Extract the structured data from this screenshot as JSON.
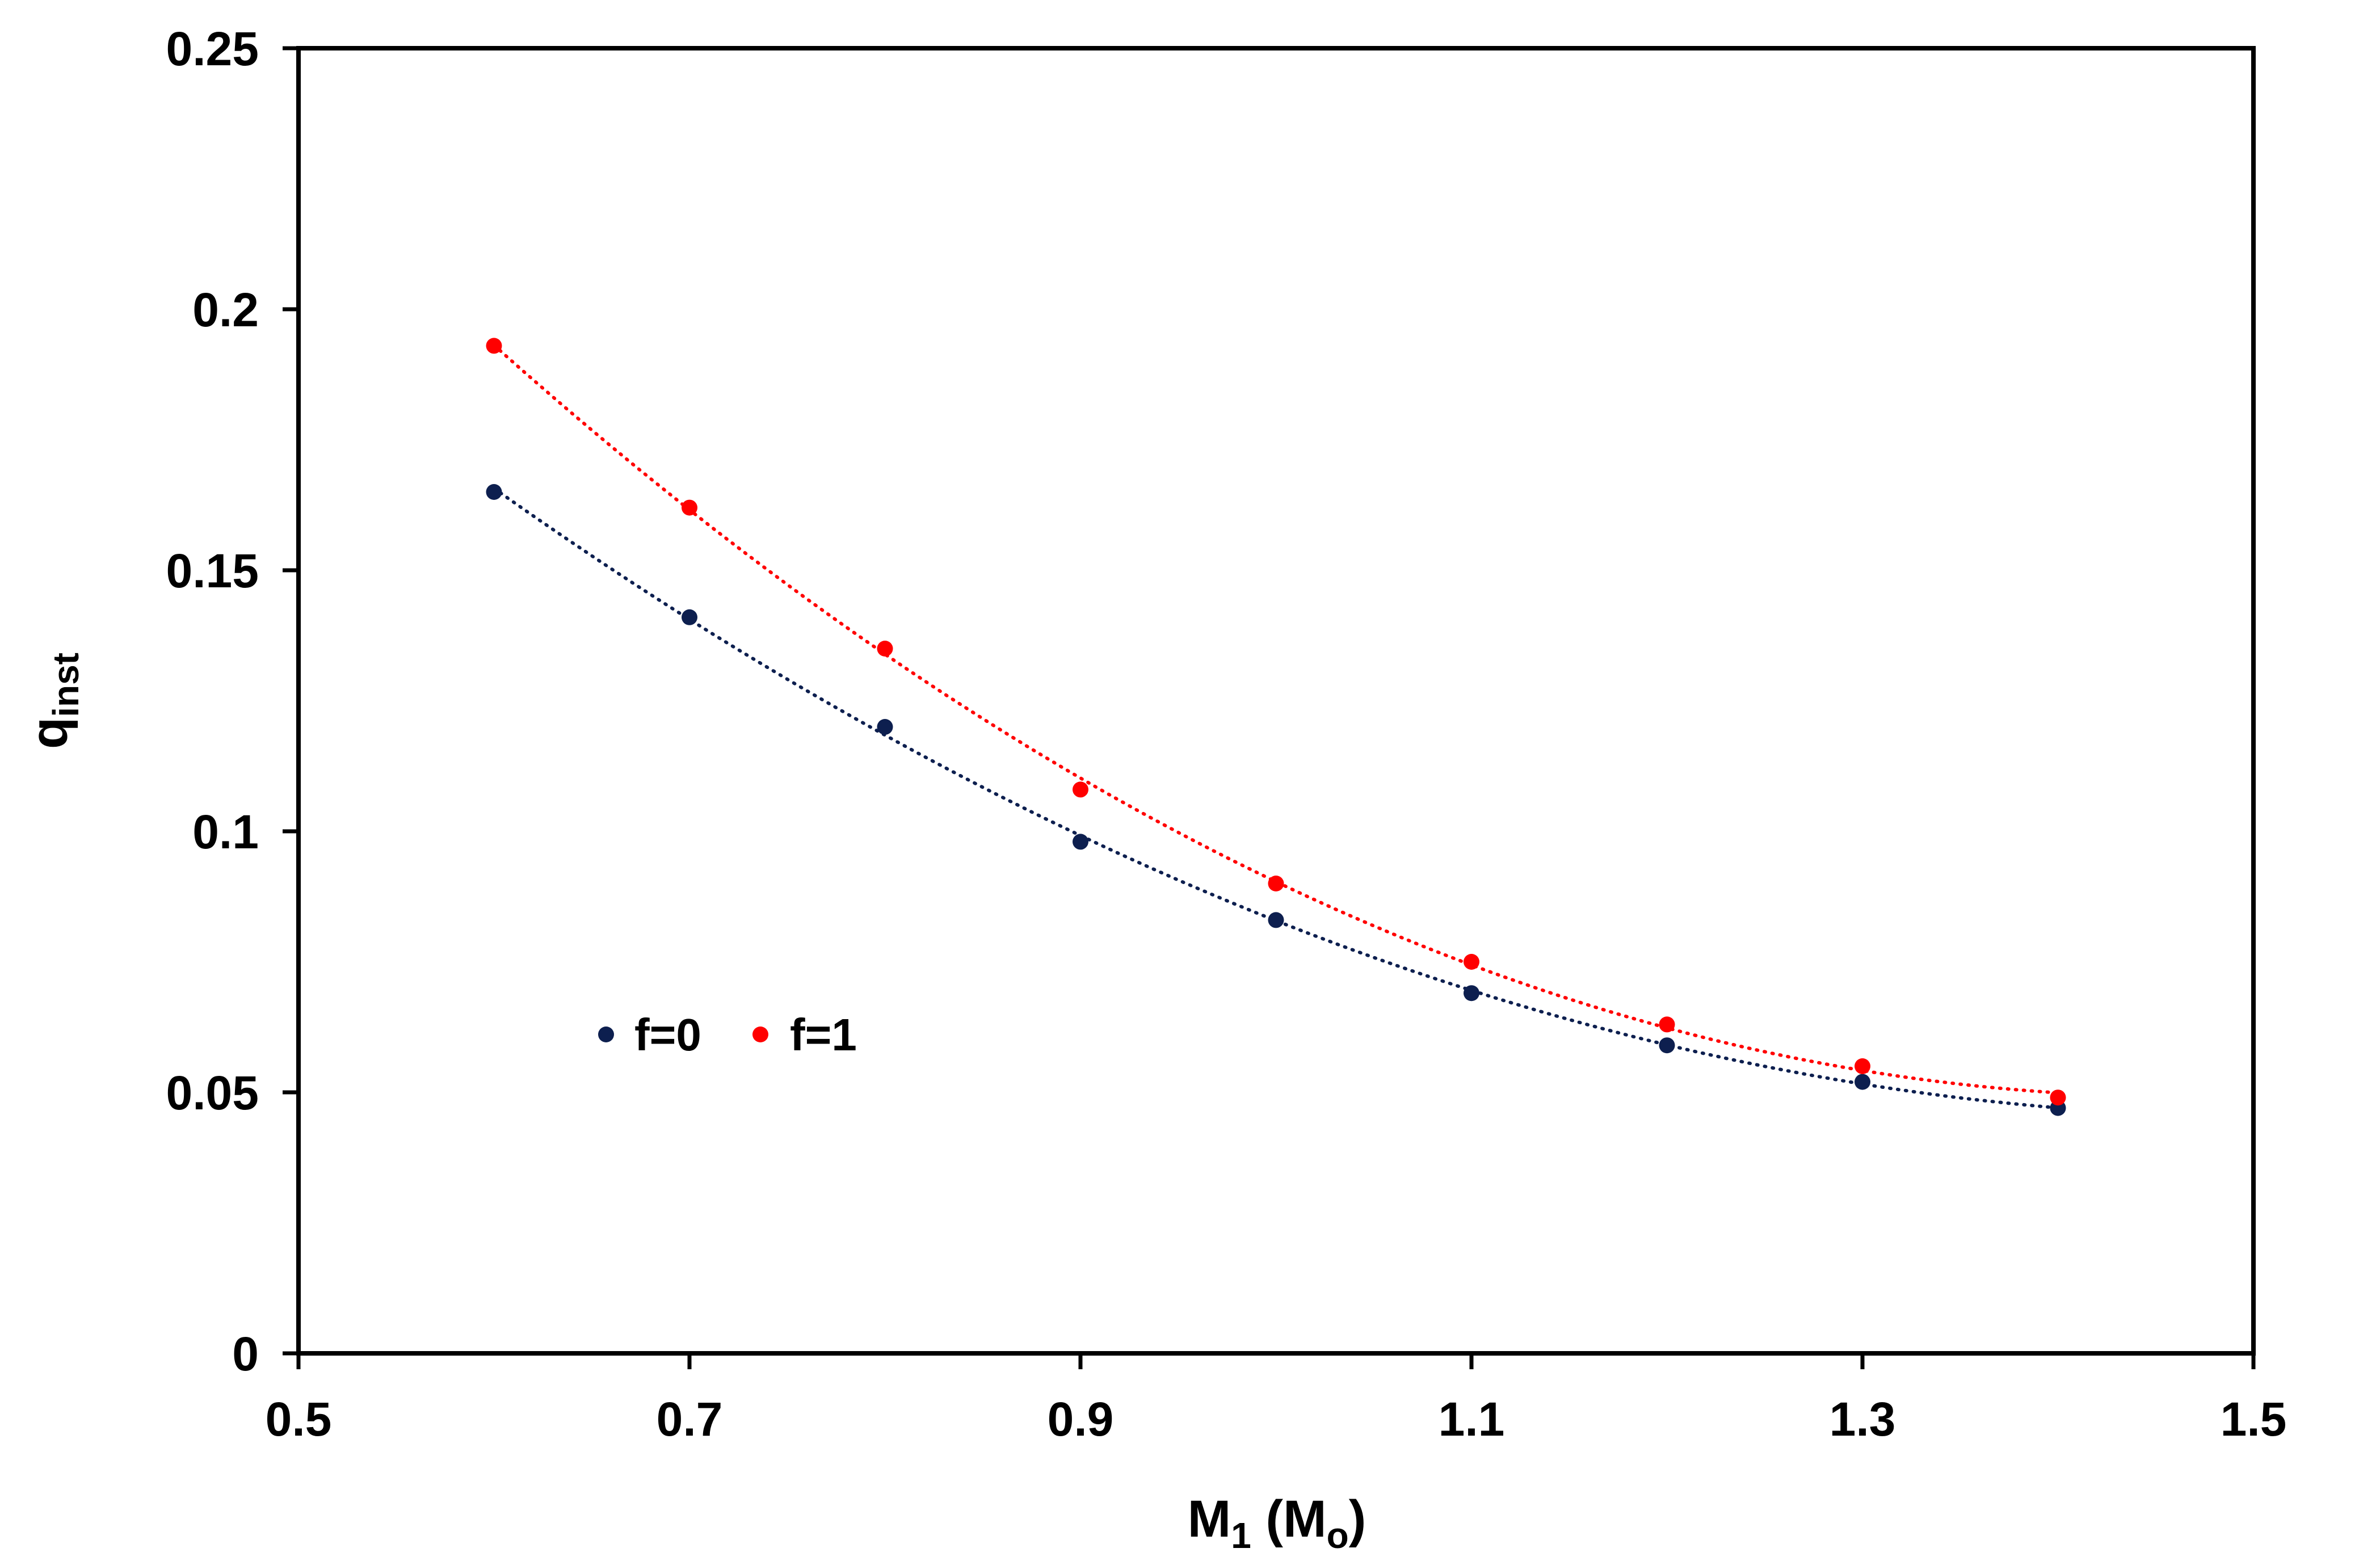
{
  "chart_data": {
    "type": "scatter",
    "title": "",
    "xlabel": {
      "main": "M",
      "sub": "1",
      "unit_open": " (M",
      "unit_sub": "o",
      "unit_close": ")"
    },
    "ylabel": {
      "main": "q",
      "sub": "inst"
    },
    "xlim": [
      0.5,
      1.5
    ],
    "ylim": [
      0,
      0.25
    ],
    "x_ticks": [
      0.5,
      0.7,
      0.9,
      1.1,
      1.3,
      1.5
    ],
    "x_tick_labels": [
      "0.5",
      "0.7",
      "0.9",
      "1.1",
      "1.3",
      "1.5"
    ],
    "y_ticks": [
      0,
      0.05,
      0.1,
      0.15,
      0.2,
      0.25
    ],
    "y_tick_labels": [
      "0",
      "0.05",
      "0.1",
      "0.15",
      "0.2",
      "0.25"
    ],
    "grid": false,
    "legend_position": "center-left",
    "trendline": "dotted polynomial fit per series",
    "series": [
      {
        "name": "f=0",
        "color": "#0d1f4f",
        "x": [
          0.6,
          0.7,
          0.8,
          0.9,
          1.0,
          1.1,
          1.2,
          1.3,
          1.4
        ],
        "y": [
          0.165,
          0.141,
          0.12,
          0.098,
          0.083,
          0.069,
          0.059,
          0.052,
          0.047
        ]
      },
      {
        "name": "f=1",
        "color": "#ff0000",
        "x": [
          0.6,
          0.7,
          0.8,
          0.9,
          1.0,
          1.1,
          1.2,
          1.3,
          1.4
        ],
        "y": [
          0.193,
          0.162,
          0.135,
          0.108,
          0.09,
          0.075,
          0.063,
          0.055,
          0.049
        ]
      }
    ]
  }
}
